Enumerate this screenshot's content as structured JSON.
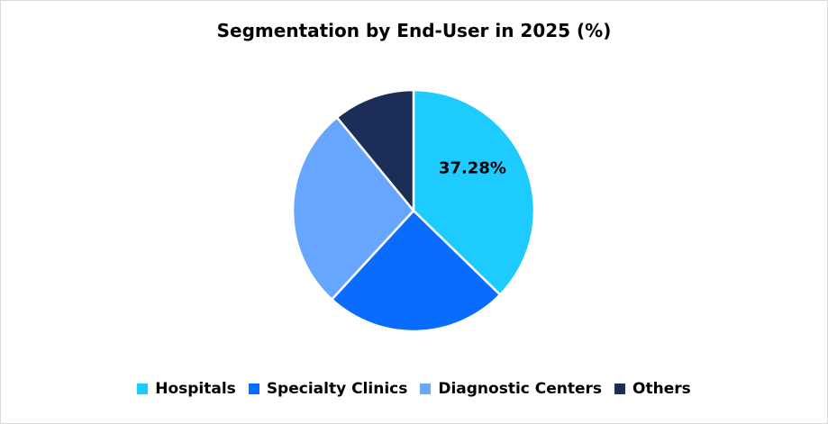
{
  "chart_data": {
    "type": "pie",
    "title": "Segmentation by End-User in 2025 (%)",
    "categories": [
      "Hospitals",
      "Specialty Clinics",
      "Diagnostic Centers",
      "Others"
    ],
    "values": [
      37.28,
      24.56,
      27.22,
      10.94
    ],
    "colors": [
      "#1ECBFF",
      "#0A6CFF",
      "#66A6FF",
      "#1B2E57"
    ],
    "data_labels": [
      "37.28%",
      "",
      "",
      ""
    ],
    "legend_position": "bottom",
    "start_angle": "12 o'clock, clockwise"
  }
}
